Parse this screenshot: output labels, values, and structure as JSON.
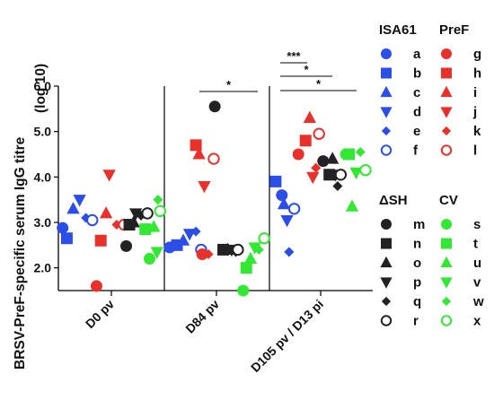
{
  "chart_data": {
    "type": "scatter",
    "ylabel_line1": "BRSV-PreF-specific serum IgG titre",
    "ylabel_line2": "(log 10)",
    "ylim": [
      1.5,
      6.0
    ],
    "yticks": [
      "2.0",
      "3.0",
      "4.0",
      "5.0",
      "6.0"
    ],
    "ytick_values": [
      2.0,
      3.0,
      4.0,
      5.0,
      6.0
    ],
    "categories": [
      "D0 pv",
      "D84 pv",
      "D105 pv / D13 pi"
    ],
    "legend_groups": [
      {
        "title": "ISA61",
        "color": "#2b4ee8",
        "keys": [
          "a",
          "b",
          "c",
          "d",
          "e",
          "f"
        ]
      },
      {
        "title": "PreF",
        "color": "#e8312b",
        "keys": [
          "g",
          "h",
          "i",
          "j",
          "k",
          "l"
        ]
      },
      {
        "title": "ΔSH",
        "color": "#222222",
        "keys": [
          "m",
          "n",
          "o",
          "p",
          "q",
          "r"
        ]
      },
      {
        "title": "CV",
        "color": "#33e833",
        "keys": [
          "s",
          "t",
          "u",
          "v",
          "w",
          "x"
        ]
      }
    ],
    "markers": [
      "circle",
      "square",
      "triangle-up",
      "triangle-down",
      "diamond",
      "open-circle"
    ],
    "series": [
      {
        "name": "a",
        "values": [
          2.88,
          2.45,
          3.6
        ]
      },
      {
        "name": "b",
        "values": [
          2.65,
          2.5,
          3.9
        ]
      },
      {
        "name": "c",
        "values": [
          3.3,
          2.6,
          3.4
        ]
      },
      {
        "name": "d",
        "values": [
          3.5,
          2.75,
          3.05
        ]
      },
      {
        "name": "e",
        "values": [
          3.1,
          2.8,
          2.35
        ]
      },
      {
        "name": "f",
        "values": [
          3.05,
          2.4,
          3.3
        ]
      },
      {
        "name": "g",
        "values": [
          1.6,
          2.3,
          4.5
        ]
      },
      {
        "name": "h",
        "values": [
          2.6,
          4.7,
          4.8
        ]
      },
      {
        "name": "i",
        "values": [
          3.2,
          4.5,
          5.3
        ]
      },
      {
        "name": "j",
        "values": [
          4.05,
          3.8,
          4.0
        ]
      },
      {
        "name": "k",
        "values": [
          2.95,
          2.3,
          4.2
        ]
      },
      {
        "name": "l",
        "values": [
          2.95,
          4.4,
          4.95
        ]
      },
      {
        "name": "m",
        "values": [
          2.48,
          5.55,
          4.35
        ]
      },
      {
        "name": "n",
        "values": [
          2.95,
          2.4,
          4.05
        ]
      },
      {
        "name": "o",
        "values": [
          3.0,
          2.4,
          4.4
        ]
      },
      {
        "name": "p",
        "values": [
          3.2,
          2.4,
          4.05
        ]
      },
      {
        "name": "q",
        "values": [
          3.15,
          2.35,
          3.8
        ]
      },
      {
        "name": "r",
        "values": [
          3.2,
          2.4,
          4.05
        ]
      },
      {
        "name": "s",
        "values": [
          2.2,
          1.5,
          4.5
        ]
      },
      {
        "name": "t",
        "values": [
          2.85,
          2.0,
          4.5
        ]
      },
      {
        "name": "u",
        "values": [
          2.9,
          2.2,
          3.35
        ]
      },
      {
        "name": "v",
        "values": [
          2.35,
          2.45,
          4.1
        ]
      },
      {
        "name": "w",
        "values": [
          3.5,
          2.4,
          4.55
        ]
      },
      {
        "name": "x",
        "values": [
          3.25,
          2.65,
          4.15
        ]
      }
    ],
    "significance": [
      {
        "from": 1,
        "to": 2,
        "label": "*"
      },
      {
        "from": 2,
        "to": 2.45,
        "label": "***"
      },
      {
        "from": 2,
        "to": 2.7,
        "label": "*"
      },
      {
        "from": 2,
        "to": 3.0,
        "label": "*"
      }
    ]
  }
}
